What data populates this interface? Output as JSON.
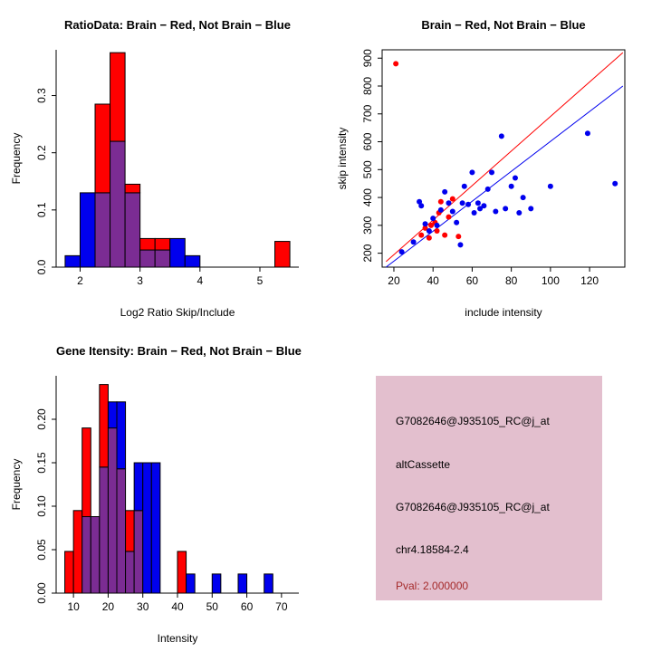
{
  "page": {
    "background": "#FFFFFF"
  },
  "colors": {
    "red": "#FF0000",
    "blue": "#0000EE",
    "overlap": "#7B2C93",
    "axis": "#000000"
  },
  "chart_data": [
    {
      "type": "histogram",
      "title": "RatioData: Brain − Red, Not Brain − Blue",
      "xlabel": "Log2 Ratio Skip/Include",
      "ylabel": "Frequency",
      "xlim": [
        1.6,
        5.65
      ],
      "ylim": [
        0,
        0.38
      ],
      "xticks": [
        2,
        3,
        4,
        5
      ],
      "xtick_labels": [
        "2",
        "3",
        "4",
        "5"
      ],
      "yticks": [
        0,
        0.1,
        0.2,
        0.3
      ],
      "ytick_labels": [
        "0.0",
        "0.1",
        "0.2",
        "0.3"
      ],
      "grid": false,
      "bin_width": 0.25,
      "bin_starts": [
        1.75,
        2,
        2.25,
        2.5,
        2.75,
        3,
        3.25,
        3.5,
        3.75,
        4,
        4.25,
        4.5,
        4.75,
        5,
        5.25
      ],
      "overlap_color": "#7B2C93",
      "series": [
        {
          "name": "Brain",
          "color": "#FF0000",
          "values": [
            0,
            0,
            0.285,
            0.375,
            0.145,
            0.05,
            0.05,
            0,
            0,
            0,
            0,
            0,
            0,
            0,
            0.045
          ]
        },
        {
          "name": "Not Brain",
          "color": "#0000EE",
          "values": [
            0.02,
            0.13,
            0.13,
            0.22,
            0.13,
            0.03,
            0.03,
            0.05,
            0.02,
            0,
            0,
            0,
            0,
            0,
            0
          ]
        }
      ]
    },
    {
      "type": "scatter",
      "title": "Brain − Red, Not Brain − Blue",
      "xlabel": "include intensity",
      "ylabel": "skip intensity",
      "xlim": [
        14,
        138
      ],
      "ylim": [
        150,
        930
      ],
      "xticks": [
        20,
        40,
        60,
        80,
        100,
        120
      ],
      "xtick_labels": [
        "20",
        "40",
        "60",
        "80",
        "100",
        "120"
      ],
      "yticks": [
        200,
        300,
        400,
        500,
        600,
        700,
        800,
        900
      ],
      "ytick_labels": [
        "200",
        "300",
        "400",
        "500",
        "600",
        "700",
        "800",
        "900"
      ],
      "grid": false,
      "series": [
        {
          "name": "Brain",
          "color": "#FF0000",
          "points": [
            [
              21,
              880
            ],
            [
              34,
              265
            ],
            [
              36,
              290
            ],
            [
              38,
              255
            ],
            [
              39,
              300
            ],
            [
              41,
              310
            ],
            [
              42,
              280
            ],
            [
              43,
              345
            ],
            [
              44,
              385
            ],
            [
              46,
              265
            ],
            [
              48,
              330
            ],
            [
              50,
              395
            ],
            [
              53,
              260
            ]
          ]
        },
        {
          "name": "Not Brain",
          "color": "#0000EE",
          "points": [
            [
              24,
              205
            ],
            [
              30,
              240
            ],
            [
              33,
              385
            ],
            [
              34,
              370
            ],
            [
              36,
              305
            ],
            [
              38,
              280
            ],
            [
              40,
              325
            ],
            [
              42,
              300
            ],
            [
              44,
              355
            ],
            [
              46,
              420
            ],
            [
              48,
              380
            ],
            [
              50,
              350
            ],
            [
              52,
              310
            ],
            [
              54,
              230
            ],
            [
              55,
              380
            ],
            [
              56,
              440
            ],
            [
              58,
              375
            ],
            [
              60,
              490
            ],
            [
              61,
              345
            ],
            [
              63,
              380
            ],
            [
              64,
              360
            ],
            [
              66,
              370
            ],
            [
              68,
              430
            ],
            [
              70,
              490
            ],
            [
              72,
              350
            ],
            [
              75,
              620
            ],
            [
              77,
              360
            ],
            [
              80,
              440
            ],
            [
              82,
              470
            ],
            [
              84,
              345
            ],
            [
              86,
              400
            ],
            [
              90,
              360
            ],
            [
              100,
              440
            ],
            [
              119,
              630
            ],
            [
              133,
              450
            ]
          ]
        }
      ],
      "lines": [
        {
          "name": "brain-fit-line",
          "color": "#FF0000",
          "x1": 16,
          "y1": 170,
          "x2": 137,
          "y2": 920
        },
        {
          "name": "notbrain-fit-line",
          "color": "#0000EE",
          "x1": 16,
          "y1": 150,
          "x2": 137,
          "y2": 800
        }
      ]
    },
    {
      "type": "histogram",
      "title": "Gene Itensity: Brain − Red, Not Brain − Blue",
      "xlabel": "Intensity",
      "ylabel": "Frequency",
      "xlim": [
        5,
        75
      ],
      "ylim": [
        0,
        0.25
      ],
      "xticks": [
        10,
        20,
        30,
        40,
        50,
        60,
        70
      ],
      "xtick_labels": [
        "10",
        "20",
        "30",
        "40",
        "50",
        "60",
        "70"
      ],
      "yticks": [
        0,
        0.05,
        0.1,
        0.15,
        0.2
      ],
      "ytick_labels": [
        "0.00",
        "0.05",
        "0.10",
        "0.15",
        "0.20"
      ],
      "grid": false,
      "bin_width": 2.5,
      "bin_starts": [
        7.5,
        10,
        12.5,
        15,
        17.5,
        20,
        22.5,
        25,
        27.5,
        30,
        32.5,
        35,
        37.5,
        40,
        42.5,
        45,
        47.5,
        50,
        52.5,
        55,
        57.5,
        60,
        62.5,
        65,
        67.5
      ],
      "overlap_color": "#7B2C93",
      "series": [
        {
          "name": "Brain",
          "color": "#FF0000",
          "values": [
            0.048,
            0.095,
            0.19,
            0.088,
            0.24,
            0.19,
            0.143,
            0.095,
            0.095,
            0,
            0,
            0,
            0,
            0.048,
            0,
            0,
            0,
            0,
            0,
            0,
            0,
            0,
            0,
            0,
            0
          ]
        },
        {
          "name": "Not Brain",
          "color": "#0000EE",
          "values": [
            0,
            0,
            0.088,
            0.088,
            0.145,
            0.22,
            0.22,
            0.048,
            0.15,
            0.15,
            0.15,
            0,
            0,
            0,
            0.022,
            0,
            0,
            0.022,
            0,
            0,
            0.022,
            0,
            0,
            0.022,
            0
          ]
        }
      ]
    }
  ],
  "info_box": {
    "background": "#E3BFCE",
    "lines": [
      {
        "text": "G7082646@J935105_RC@j_at",
        "color": "#000000"
      },
      {
        "text": "altCassette",
        "color": "#000000"
      },
      {
        "text": "G7082646@J935105_RC@j_at",
        "color": "#000000"
      },
      {
        "text": "chr4.18584-2.4",
        "color": "#000000"
      },
      {
        "text": "Pval: 2.000000",
        "color": "#A52A2A"
      }
    ]
  }
}
